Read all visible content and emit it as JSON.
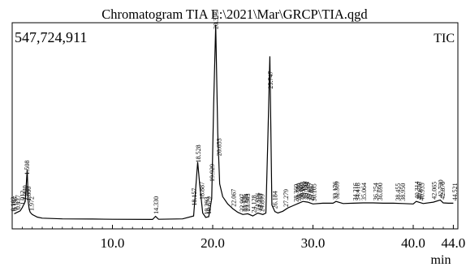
{
  "chart_data": {
    "type": "line",
    "title": "Chromatogram TIA E:\\2021\\Mar\\GRCP\\TIA.qgd",
    "intensity_max_label": "547,724,911",
    "trace_label": "TIC",
    "xlabel": "min",
    "ylabel": "",
    "xlim": [
      0.0,
      44.0
    ],
    "x_ticks": [
      {
        "value": 10.0,
        "label": "10.0"
      },
      {
        "value": 20.0,
        "label": "20.0"
      },
      {
        "value": 30.0,
        "label": "30.0"
      },
      {
        "value": 40.0,
        "label": "40.0"
      },
      {
        "value": 44.0,
        "label": "44.0"
      }
    ],
    "ylim": [
      0,
      547724911
    ],
    "series": [
      {
        "x": [
          0.2,
          0.8,
          1.0,
          1.3,
          1.5,
          1.6,
          1.7,
          1.8,
          2.0,
          2.5,
          3.0,
          5.0,
          8.0,
          10.0,
          14.0,
          14.3,
          14.6,
          17.0,
          18.1,
          18.3,
          18.5,
          18.7,
          19.0,
          19.3,
          19.6,
          19.9,
          20.1,
          20.3,
          20.5,
          20.7,
          21.0,
          21.5,
          22.0,
          22.5,
          23.0,
          23.5,
          24.0,
          24.5,
          25.0,
          25.3,
          25.5,
          25.7,
          25.9,
          26.2,
          26.5,
          27.0,
          27.5,
          28.0,
          28.5,
          29.0,
          29.5,
          30.0,
          31.0,
          32.0,
          32.3,
          33.0,
          34.0,
          35.0,
          36.0,
          37.0,
          38.0,
          39.0,
          40.0,
          40.3,
          41.0,
          42.0,
          42.7,
          43.0,
          43.5,
          44.0
        ],
        "y": [
          28000000,
          36000000,
          45000000,
          62000000,
          150000000,
          60000000,
          40000000,
          32000000,
          26000000,
          19000000,
          16000000,
          14000000,
          13500000,
          13000000,
          12500000,
          21000000,
          13000000,
          14000000,
          22000000,
          96000000,
          170000000,
          110000000,
          30000000,
          18000000,
          20000000,
          70000000,
          330000000,
          547000000,
          250000000,
          110000000,
          75000000,
          55000000,
          42000000,
          32000000,
          26000000,
          28000000,
          22000000,
          30000000,
          26000000,
          30000000,
          230000000,
          460000000,
          52000000,
          34000000,
          30000000,
          35000000,
          44000000,
          50000000,
          56000000,
          62000000,
          60000000,
          55000000,
          57000000,
          57000000,
          62000000,
          56000000,
          57000000,
          58000000,
          58000000,
          57000000,
          57000000,
          56000000,
          55000000,
          62000000,
          56000000,
          60000000,
          66000000,
          58000000,
          57000000,
          57000000
        ]
      }
    ],
    "peak_labels": [
      {
        "x": 0.1,
        "label": "0.102"
      },
      {
        "x": 0.3,
        "label": "0.197"
      },
      {
        "x": 0.55,
        "label": "0.437"
      },
      {
        "x": 1.0,
        "label": "1.012"
      },
      {
        "x": 1.25,
        "label": "1.330"
      },
      {
        "x": 1.45,
        "label": "1.508"
      },
      {
        "x": 1.62,
        "label": "1.660"
      },
      {
        "x": 1.9,
        "label": "1.972"
      },
      {
        "x": 14.33,
        "label": "14.330"
      },
      {
        "x": 18.157,
        "label": "18.157"
      },
      {
        "x": 18.528,
        "label": "18.528"
      },
      {
        "x": 18.887,
        "label": "18.887"
      },
      {
        "x": 19.393,
        "label": "19.393"
      },
      {
        "x": 19.6,
        "label": "19.679"
      },
      {
        "x": 19.93,
        "label": "19.929"
      },
      {
        "x": 20.3,
        "label": "20.313"
      },
      {
        "x": 20.6,
        "label": "20.653"
      },
      {
        "x": 22.067,
        "label": "22.067"
      },
      {
        "x": 22.9,
        "label": "22.907"
      },
      {
        "x": 23.1,
        "label": "23.126"
      },
      {
        "x": 23.3,
        "label": "23.324"
      },
      {
        "x": 23.5,
        "label": "23.503"
      },
      {
        "x": 24.1,
        "label": "24.128"
      },
      {
        "x": 24.5,
        "label": "24.596"
      },
      {
        "x": 24.7,
        "label": "24.713"
      },
      {
        "x": 24.9,
        "label": "24.899"
      },
      {
        "x": 25.747,
        "label": "25.747"
      },
      {
        "x": 26.184,
        "label": "26.184"
      },
      {
        "x": 27.279,
        "label": "27.279"
      },
      {
        "x": 28.3,
        "label": "28.360"
      },
      {
        "x": 28.55,
        "label": "28.580"
      },
      {
        "x": 28.8,
        "label": "28.805"
      },
      {
        "x": 29.0,
        "label": "29.005"
      },
      {
        "x": 29.2,
        "label": "29.188"
      },
      {
        "x": 29.4,
        "label": "29.384"
      },
      {
        "x": 29.6,
        "label": "29.617"
      },
      {
        "x": 29.85,
        "label": "29.887"
      },
      {
        "x": 30.1,
        "label": "30.105"
      },
      {
        "x": 32.2,
        "label": "32.176"
      },
      {
        "x": 32.35,
        "label": "32.369"
      },
      {
        "x": 34.2,
        "label": "34.216"
      },
      {
        "x": 34.45,
        "label": "34.416"
      },
      {
        "x": 35.064,
        "label": "35.064"
      },
      {
        "x": 36.254,
        "label": "36.254"
      },
      {
        "x": 36.69,
        "label": "36.690"
      },
      {
        "x": 38.455,
        "label": "38.455"
      },
      {
        "x": 38.95,
        "label": "38.950"
      },
      {
        "x": 40.35,
        "label": "40.314"
      },
      {
        "x": 40.6,
        "label": "40.676"
      },
      {
        "x": 40.85,
        "label": "40.935"
      },
      {
        "x": 42.065,
        "label": "42.065"
      },
      {
        "x": 42.7,
        "label": "42.730"
      },
      {
        "x": 42.9,
        "label": "42.870"
      },
      {
        "x": 44.521,
        "label": "44.521"
      }
    ],
    "grid": false,
    "legend": "none"
  }
}
